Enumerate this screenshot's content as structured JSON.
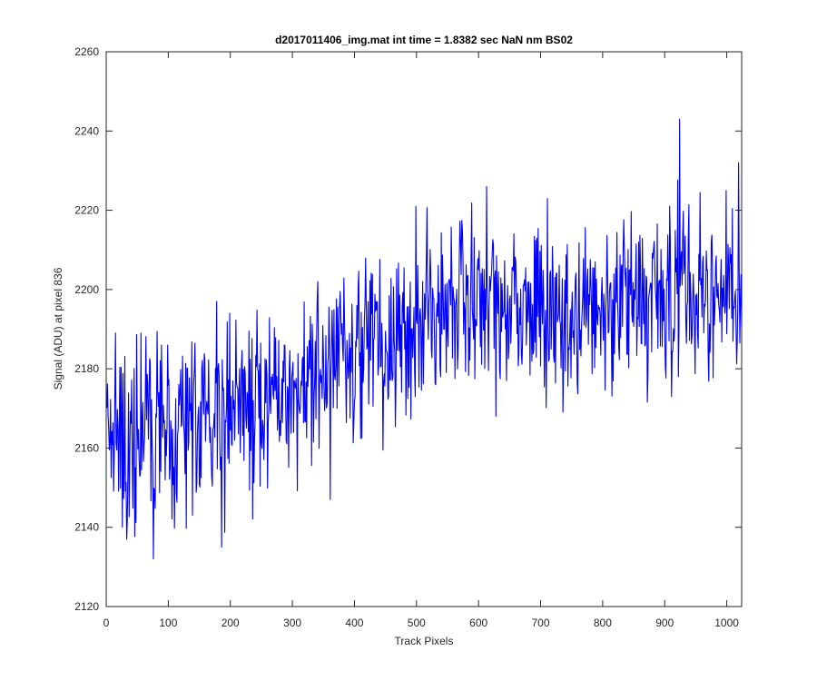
{
  "chart_data": {
    "type": "line",
    "title": "d2017011406_img.mat int time = 1.8382 sec  NaN nm BS02",
    "xlabel": "Track Pixels",
    "ylabel": "Signal (ADU) at pixel 836",
    "xlim": [
      0,
      1024
    ],
    "ylim": [
      2120,
      2260
    ],
    "xticks": [
      0,
      100,
      200,
      300,
      400,
      500,
      600,
      700,
      800,
      900,
      1000
    ],
    "yticks": [
      2120,
      2140,
      2160,
      2180,
      2200,
      2220,
      2240,
      2260
    ],
    "grid": false,
    "legend": "none",
    "series": [
      {
        "color": "#0000ff",
        "x": [
          0,
          10,
          20,
          30,
          40,
          50,
          60,
          70,
          80,
          90,
          100,
          110,
          120,
          130,
          140,
          150,
          160,
          170,
          180,
          190,
          200,
          210,
          220,
          230,
          240,
          250,
          260,
          270,
          280,
          290,
          300,
          310,
          320,
          330,
          340,
          350,
          360,
          370,
          380,
          390,
          400,
          410,
          420,
          430,
          440,
          450,
          460,
          470,
          480,
          490,
          500,
          510,
          520,
          530,
          540,
          550,
          560,
          570,
          580,
          590,
          600,
          610,
          620,
          630,
          640,
          650,
          660,
          670,
          680,
          690,
          700,
          710,
          720,
          730,
          740,
          750,
          760,
          770,
          780,
          790,
          800,
          810,
          820,
          830,
          840,
          850,
          860,
          870,
          880,
          890,
          900,
          910,
          920,
          930,
          940,
          950,
          960,
          970,
          980,
          990,
          1000,
          1010,
          1020,
          1023
        ],
        "values": [
          2170,
          2163,
          2172,
          2158,
          2166,
          2161,
          2170,
          2164,
          2168,
          2162,
          2166,
          2159,
          2170,
          2165,
          2168,
          2163,
          2169,
          2166,
          2171,
          2165,
          2170,
          2167,
          2173,
          2169,
          2172,
          2170,
          2175,
          2172,
          2176,
          2174,
          2177,
          2175,
          2179,
          2177,
          2180,
          2176,
          2180,
          2179,
          2183,
          2181,
          2184,
          2182,
          2185,
          2184,
          2187,
          2185,
          2188,
          2189,
          2191,
          2190,
          2192,
          2193,
          2194,
          2192,
          2195,
          2194,
          2196,
          2193,
          2196,
          2195,
          2197,
          2194,
          2196,
          2193,
          2195,
          2194,
          2196,
          2193,
          2195,
          2194,
          2196,
          2195,
          2194,
          2196,
          2193,
          2195,
          2194,
          2196,
          2195,
          2194,
          2196,
          2193,
          2195,
          2196,
          2197,
          2195,
          2196,
          2194,
          2197,
          2196,
          2198,
          2196,
          2200,
          2199,
          2197,
          2198,
          2200,
          2197,
          2199,
          2198,
          2200,
          2199,
          2203,
          2204
        ],
        "noise_amplitude": 12,
        "points": 1024,
        "spikes": [
          {
            "x": 14,
            "y": 2189
          },
          {
            "x": 32,
            "y": 2137
          },
          {
            "x": 55,
            "y": 2189
          },
          {
            "x": 75,
            "y": 2132
          },
          {
            "x": 88,
            "y": 2186
          },
          {
            "x": 138,
            "y": 2143
          },
          {
            "x": 185,
            "y": 2135
          },
          {
            "x": 177,
            "y": 2197
          },
          {
            "x": 198,
            "y": 2194
          },
          {
            "x": 360,
            "y": 2147
          },
          {
            "x": 340,
            "y": 2202
          },
          {
            "x": 498,
            "y": 2221
          },
          {
            "x": 612,
            "y": 2226
          },
          {
            "x": 627,
            "y": 2168
          },
          {
            "x": 923,
            "y": 2243
          },
          {
            "x": 910,
            "y": 2173
          },
          {
            "x": 1018,
            "y": 2232
          }
        ]
      }
    ]
  }
}
